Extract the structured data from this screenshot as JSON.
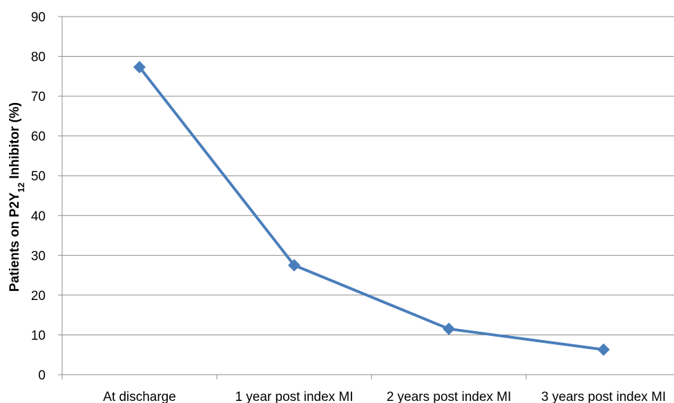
{
  "chart_data": {
    "type": "line",
    "title": "",
    "xlabel": "",
    "ylabel_prefix": "Patients on P2Y",
    "ylabel_subscript": "12",
    "ylabel_suffix": " Inhibitor (%)",
    "categories": [
      "At discharge",
      "1 year post index MI",
      "2 years post index MI",
      "3 years post index MI"
    ],
    "series": [
      {
        "values": [
          77.3,
          27.5,
          11.5,
          6.3
        ],
        "color": "#4a7ebb",
        "marker": "diamond"
      }
    ],
    "ylim": [
      0,
      90
    ],
    "yticks": [
      0,
      10,
      20,
      30,
      40,
      50,
      60,
      70,
      80,
      90
    ],
    "grid": true,
    "legend": "none"
  }
}
